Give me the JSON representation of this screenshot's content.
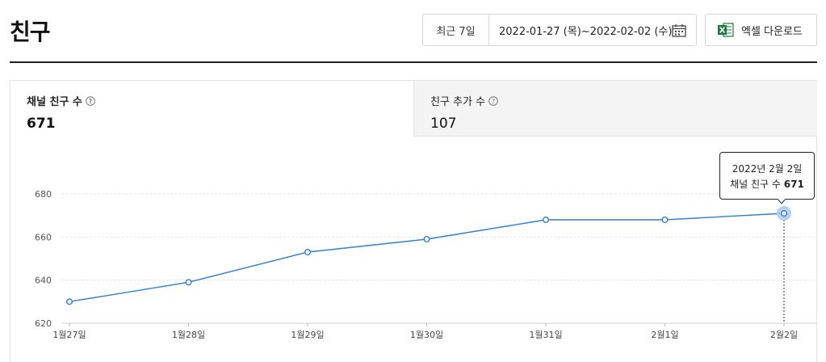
{
  "page": {
    "title": "친구"
  },
  "period": {
    "preset_label": "최근 7일",
    "range_label": "2022-01-27 (목)~2022-02-02 (수)"
  },
  "toolbar": {
    "excel_label": "엑셀 다운로드"
  },
  "tabs": [
    {
      "label": "채널 친구 수",
      "value": "671",
      "selected": true
    },
    {
      "label": "친구 추가 수",
      "value": "107",
      "selected": false
    }
  ],
  "tooltip": {
    "date": "2022년 2월 2일",
    "metric": "채널 친구 수",
    "value": "671"
  },
  "colors": {
    "line": "#2f7fd6",
    "grid": "#e6e6e6",
    "highlight": "#a9c9f2"
  },
  "chart_data": {
    "type": "line",
    "categories": [
      "1월27일",
      "1월28일",
      "1월29일",
      "1월30일",
      "1월31일",
      "2월1일",
      "2월2일"
    ],
    "series": [
      {
        "name": "채널 친구 수",
        "values": [
          630,
          639,
          653,
          659,
          668,
          668,
          671
        ]
      }
    ],
    "yticks": [
      620,
      640,
      660,
      680
    ],
    "ylim": [
      620,
      680
    ],
    "grid": true,
    "highlight_index": 6
  }
}
